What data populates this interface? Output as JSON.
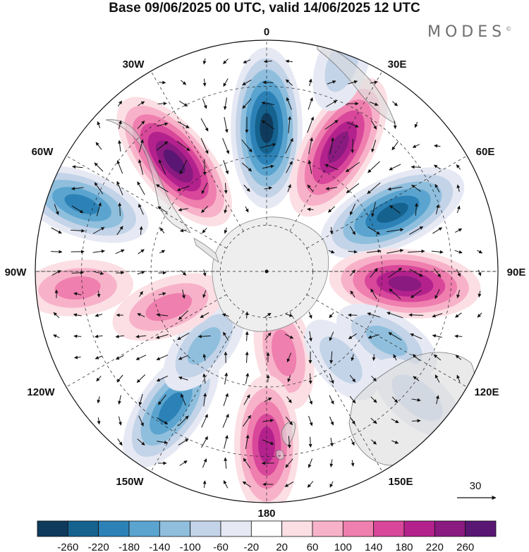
{
  "title": "Base 09/06/2025 00 UTC, valid 14/06/2025 12 UTC",
  "brand": "MODES",
  "brand_mark": "©",
  "longitude_labels": {
    "lon_0": "0",
    "lon_30e": "30E",
    "lon_60e": "60E",
    "lon_90e": "90E",
    "lon_120e": "120E",
    "lon_150e": "150E",
    "lon_180": "180",
    "lon_150w": "150W",
    "lon_120w": "120W",
    "lon_90w": "90W",
    "lon_60w": "60W",
    "lon_30w": "30W"
  },
  "vector_reference": "30",
  "colorbar": {
    "ticks": [
      "-260",
      "-220",
      "-180",
      "-140",
      "-100",
      "-60",
      "-20",
      "20",
      "60",
      "100",
      "140",
      "180",
      "220",
      "260"
    ],
    "colors": [
      "#0e3a5c",
      "#15628f",
      "#2c82b6",
      "#5aa4cf",
      "#8fbfdd",
      "#c3d3e8",
      "#e6e9f3",
      "#ffffff",
      "#fbdfe4",
      "#f7b2c9",
      "#ef7fae",
      "#d8479a",
      "#b3218d",
      "#8a1a80",
      "#5a1673"
    ]
  },
  "anomalies": [
    {
      "lon": 0,
      "r_frac": 0.62,
      "value": -270
    },
    {
      "lon": 30,
      "r_frac": 0.62,
      "value": 250
    },
    {
      "lon": 65,
      "r_frac": 0.6,
      "value": -250
    },
    {
      "lon": 95,
      "r_frac": 0.6,
      "value": 240
    },
    {
      "lon": 120,
      "r_frac": 0.6,
      "value": -110
    },
    {
      "lon": 130,
      "r_frac": 0.85,
      "value": -90
    },
    {
      "lon": 168,
      "r_frac": 0.36,
      "value": 120
    },
    {
      "lon": 180,
      "r_frac": 0.75,
      "value": 200
    },
    {
      "lon": 140,
      "r_frac": 0.5,
      "value": -60
    },
    {
      "lon": -145,
      "r_frac": 0.72,
      "value": -200
    },
    {
      "lon": -140,
      "r_frac": 0.42,
      "value": -100
    },
    {
      "lon": -110,
      "r_frac": 0.45,
      "value": 130
    },
    {
      "lon": -95,
      "r_frac": 0.82,
      "value": 110
    },
    {
      "lon": -70,
      "r_frac": 0.85,
      "value": -200
    },
    {
      "lon": -40,
      "r_frac": 0.62,
      "value": 260
    },
    {
      "lon": 20,
      "r_frac": 0.95,
      "value": -60
    }
  ]
}
